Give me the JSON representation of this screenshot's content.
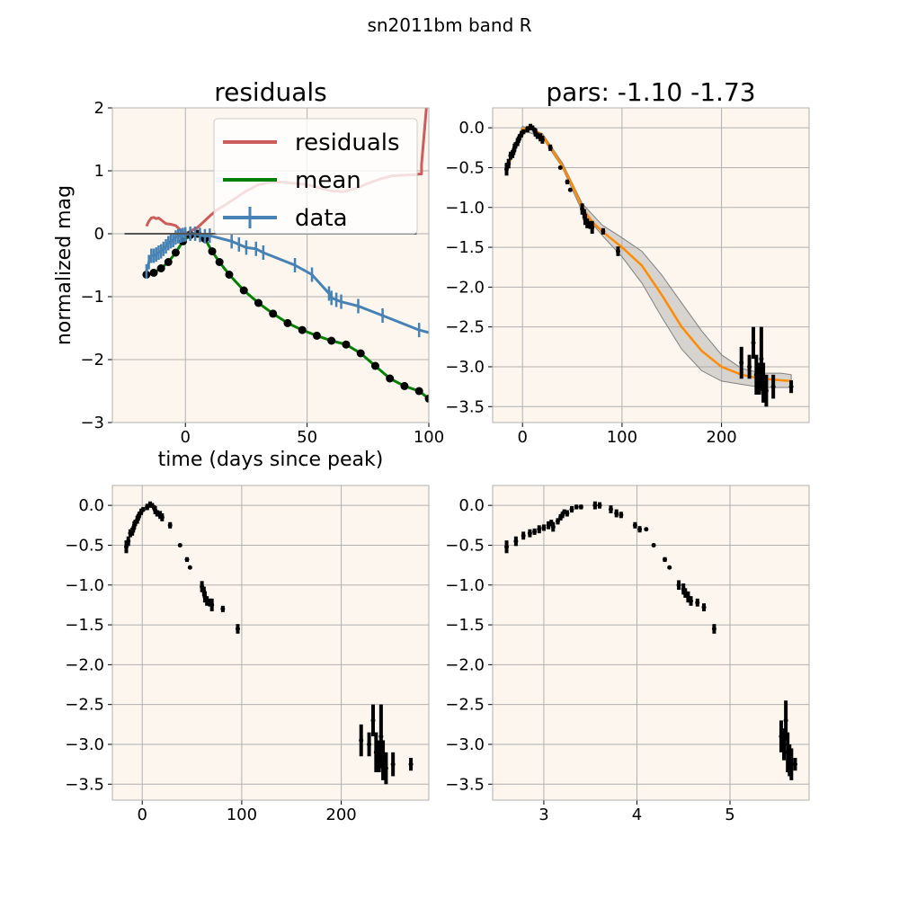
{
  "figure": {
    "suptitle": "sn2011bm band R"
  },
  "colors": {
    "panel_bg": "#fdf6ee",
    "grid": "#b0b0b0",
    "residuals": "#cd5c5c",
    "mean": "#008000",
    "data": "#4682b4",
    "gp_mean": "#ff8c00",
    "gp_band": "#a9a9a9",
    "points": "#000000"
  },
  "chart_data": [
    {
      "type": "line",
      "title": "residuals",
      "xlabel": "time (days since peak)",
      "ylabel": "normalized mag",
      "xlim": [
        -30,
        100
      ],
      "ylim": [
        -3,
        2
      ],
      "xticks": [
        0,
        50,
        100
      ],
      "yticks": [
        2,
        1,
        0,
        -1,
        -2,
        -3
      ],
      "grid": true,
      "legend": {
        "position": "top-right",
        "entries": [
          "residuals",
          "mean",
          "data"
        ]
      },
      "series": [
        {
          "name": "residuals",
          "style": "line",
          "x": [
            -16,
            -15,
            -14,
            -13,
            -12,
            -11,
            -10,
            -8,
            -6,
            -4,
            -2,
            0,
            5,
            10,
            13,
            16,
            20,
            25,
            30,
            35,
            40,
            45,
            50,
            55,
            60,
            65,
            70,
            75,
            80,
            85,
            90,
            95,
            96,
            97,
            97,
            99
          ],
          "y": [
            0.12,
            0.2,
            0.25,
            0.26,
            0.24,
            0.25,
            0.22,
            0.16,
            0.15,
            0.13,
            0.06,
            0.0,
            0.1,
            0.28,
            0.38,
            0.45,
            0.55,
            0.68,
            0.78,
            0.82,
            0.82,
            0.8,
            0.78,
            0.73,
            0.68,
            0.67,
            0.72,
            0.8,
            0.87,
            0.92,
            0.93,
            0.94,
            0.95,
            0.95,
            1.1,
            2.0
          ]
        },
        {
          "name": "mean",
          "style": "line",
          "x": [
            -16,
            -13,
            -10,
            -7,
            -4,
            -1,
            2,
            5,
            8,
            11,
            14,
            18,
            24,
            30,
            36,
            42,
            48,
            54,
            60,
            66,
            72,
            78,
            84,
            90,
            96,
            100
          ],
          "y": [
            -0.65,
            -0.62,
            -0.55,
            -0.45,
            -0.3,
            -0.12,
            -0.02,
            0.0,
            -0.08,
            -0.28,
            -0.45,
            -0.65,
            -0.9,
            -1.1,
            -1.27,
            -1.42,
            -1.53,
            -1.62,
            -1.7,
            -1.76,
            -1.9,
            -2.1,
            -2.3,
            -2.42,
            -2.5,
            -2.62
          ]
        },
        {
          "name": "data",
          "style": "errorbar",
          "x": [
            -16,
            -15,
            -14,
            -13,
            -12,
            -11,
            -10,
            -9,
            -8,
            -7,
            -6,
            -5,
            -4,
            -3,
            -2,
            -1,
            0,
            2,
            4,
            6,
            8,
            10,
            19,
            22,
            25,
            29,
            32,
            45,
            52,
            59,
            60,
            62,
            64,
            71,
            81,
            96,
            101
          ],
          "y": [
            -0.6,
            -0.45,
            -0.35,
            -0.35,
            -0.33,
            -0.3,
            -0.28,
            -0.24,
            -0.2,
            -0.15,
            -0.12,
            -0.1,
            -0.06,
            -0.04,
            -0.03,
            -0.02,
            -0.01,
            0.0,
            0.0,
            -0.02,
            -0.04,
            -0.03,
            -0.12,
            -0.17,
            -0.22,
            -0.24,
            -0.3,
            -0.5,
            -0.65,
            -0.95,
            -1.02,
            -1.05,
            -1.08,
            -1.15,
            -1.3,
            -1.53,
            -1.58
          ]
        },
        {
          "name": "",
          "style": "baseline",
          "x": [
            -25,
            95
          ],
          "y": [
            0,
            0
          ]
        }
      ]
    },
    {
      "type": "line",
      "title": "pars: -1.10 -1.73",
      "xlim": [
        -30,
        288
      ],
      "ylim": [
        -3.7,
        0.25
      ],
      "xticks": [
        0,
        100,
        200
      ],
      "yticks": [
        0.0,
        -0.5,
        -1.0,
        -1.5,
        -2.0,
        -2.5,
        -3.0,
        -3.5
      ],
      "grid": true,
      "series": [
        {
          "name": "",
          "style": "band",
          "x": [
            -16,
            0,
            20,
            40,
            60,
            80,
            100,
            120,
            140,
            160,
            180,
            200,
            220,
            240,
            260,
            270
          ],
          "lower": [
            -0.55,
            -0.03,
            -0.12,
            -0.5,
            -1.05,
            -1.35,
            -1.62,
            -1.95,
            -2.38,
            -2.78,
            -3.05,
            -3.18,
            -3.22,
            -3.26,
            -3.26,
            -3.26
          ],
          "upper": [
            -0.5,
            0.02,
            -0.07,
            -0.44,
            -0.95,
            -1.22,
            -1.38,
            -1.55,
            -1.85,
            -2.2,
            -2.55,
            -2.85,
            -3.02,
            -3.08,
            -3.08,
            -3.1
          ]
        },
        {
          "name": "",
          "style": "line",
          "x": [
            -16,
            0,
            10,
            20,
            30,
            40,
            50,
            60,
            70,
            80,
            90,
            100,
            120,
            140,
            160,
            180,
            200,
            220,
            240,
            260,
            270
          ],
          "y": [
            -0.52,
            -0.02,
            0.0,
            -0.1,
            -0.28,
            -0.48,
            -0.72,
            -1.0,
            -1.18,
            -1.3,
            -1.4,
            -1.5,
            -1.73,
            -2.1,
            -2.5,
            -2.8,
            -3.0,
            -3.1,
            -3.15,
            -3.17,
            -3.18
          ]
        },
        {
          "name": "",
          "style": "errorbar",
          "x": [
            -16,
            -14,
            -12,
            -10,
            -9,
            -8,
            -7,
            -5,
            -4,
            -3,
            -1,
            1,
            5,
            8,
            10,
            12,
            13,
            15,
            18,
            20,
            28,
            38,
            45,
            48,
            60,
            62,
            63,
            65,
            68,
            70,
            81,
            96,
            220,
            228,
            232,
            235,
            238,
            240,
            242,
            245,
            252,
            270
          ],
          "y": [
            -0.52,
            -0.45,
            -0.35,
            -0.33,
            -0.3,
            -0.25,
            -0.22,
            -0.18,
            -0.15,
            -0.12,
            -0.08,
            -0.05,
            -0.02,
            0.01,
            0.0,
            -0.03,
            -0.06,
            -0.1,
            -0.12,
            -0.15,
            -0.25,
            -0.5,
            -0.68,
            -0.78,
            -1.02,
            -1.08,
            -1.15,
            -1.2,
            -1.22,
            -1.25,
            -1.3,
            -1.55,
            -2.95,
            -3.0,
            -2.7,
            -3.1,
            -3.15,
            -2.9,
            -3.2,
            -3.3,
            -3.25,
            -3.25
          ],
          "yerr": [
            0.08,
            0.06,
            0.05,
            0.05,
            0.04,
            0.05,
            0.04,
            0.05,
            0.04,
            0.04,
            0.04,
            0.03,
            0.04,
            0.04,
            0.03,
            0.03,
            0.05,
            0.04,
            0.05,
            0.05,
            0.04,
            0.02,
            0.03,
            0.02,
            0.07,
            0.06,
            0.07,
            0.06,
            0.05,
            0.08,
            0.04,
            0.06,
            0.2,
            0.15,
            0.2,
            0.25,
            0.2,
            0.4,
            0.25,
            0.2,
            0.15,
            0.08
          ]
        }
      ]
    },
    {
      "type": "scatter",
      "xlim": [
        -30,
        288
      ],
      "ylim": [
        -3.7,
        0.25
      ],
      "xticks": [
        0,
        100,
        200
      ],
      "yticks": [
        0.0,
        -0.5,
        -1.0,
        -1.5,
        -2.0,
        -2.5,
        -3.0,
        -3.5
      ],
      "grid": true,
      "series": [
        {
          "name": "",
          "style": "errorbar",
          "x": [
            -16,
            -14,
            -12,
            -10,
            -9,
            -8,
            -7,
            -5,
            -4,
            -3,
            -1,
            1,
            5,
            8,
            10,
            12,
            13,
            15,
            18,
            20,
            28,
            38,
            45,
            48,
            60,
            62,
            63,
            65,
            68,
            70,
            81,
            96,
            220,
            228,
            232,
            235,
            238,
            240,
            242,
            245,
            252,
            270
          ],
          "y": [
            -0.52,
            -0.45,
            -0.35,
            -0.33,
            -0.3,
            -0.25,
            -0.22,
            -0.18,
            -0.15,
            -0.12,
            -0.08,
            -0.05,
            -0.02,
            0.01,
            0.0,
            -0.03,
            -0.06,
            -0.1,
            -0.12,
            -0.15,
            -0.25,
            -0.5,
            -0.68,
            -0.78,
            -1.02,
            -1.08,
            -1.15,
            -1.2,
            -1.22,
            -1.25,
            -1.3,
            -1.55,
            -2.95,
            -3.0,
            -2.7,
            -3.1,
            -3.15,
            -2.9,
            -3.2,
            -3.3,
            -3.25,
            -3.25
          ],
          "yerr": [
            0.08,
            0.06,
            0.05,
            0.05,
            0.04,
            0.05,
            0.04,
            0.05,
            0.04,
            0.04,
            0.04,
            0.03,
            0.04,
            0.04,
            0.03,
            0.03,
            0.05,
            0.04,
            0.05,
            0.05,
            0.04,
            0.02,
            0.03,
            0.02,
            0.07,
            0.06,
            0.07,
            0.06,
            0.05,
            0.08,
            0.04,
            0.06,
            0.2,
            0.15,
            0.2,
            0.25,
            0.2,
            0.4,
            0.25,
            0.2,
            0.15,
            0.08
          ]
        }
      ]
    },
    {
      "type": "scatter",
      "xlim": [
        2.45,
        5.85
      ],
      "ylim": [
        -3.7,
        0.25
      ],
      "xticks": [
        3,
        4,
        5
      ],
      "yticks": [
        0.0,
        -0.5,
        -1.0,
        -1.5,
        -2.0,
        -2.5,
        -3.0,
        -3.5
      ],
      "grid": true,
      "series": [
        {
          "name": "",
          "style": "errorbar",
          "x": [
            2.6,
            2.7,
            2.78,
            2.85,
            2.9,
            2.95,
            3.0,
            3.05,
            3.08,
            3.1,
            3.15,
            3.18,
            3.2,
            3.22,
            3.25,
            3.3,
            3.35,
            3.4,
            3.55,
            3.6,
            3.72,
            3.78,
            3.83,
            3.98,
            4.03,
            4.1,
            4.18,
            4.3,
            4.35,
            4.45,
            4.5,
            4.52,
            4.55,
            4.58,
            4.65,
            4.72,
            4.83,
            5.55,
            5.58,
            5.6,
            5.62,
            5.64,
            5.66,
            5.7
          ],
          "y": [
            -0.52,
            -0.45,
            -0.38,
            -0.35,
            -0.33,
            -0.3,
            -0.28,
            -0.25,
            -0.22,
            -0.27,
            -0.2,
            -0.15,
            -0.12,
            -0.08,
            -0.1,
            -0.05,
            -0.02,
            -0.02,
            0.0,
            0.0,
            -0.05,
            -0.1,
            -0.12,
            -0.25,
            -0.3,
            -0.3,
            -0.5,
            -0.68,
            -0.78,
            -1.0,
            -1.05,
            -1.1,
            -1.15,
            -1.2,
            -1.22,
            -1.28,
            -1.55,
            -2.9,
            -3.0,
            -2.7,
            -3.1,
            -3.2,
            -3.25,
            -3.25
          ],
          "yerr": [
            0.08,
            0.06,
            0.05,
            0.05,
            0.04,
            0.05,
            0.04,
            0.05,
            0.04,
            0.06,
            0.04,
            0.04,
            0.04,
            0.03,
            0.04,
            0.04,
            0.03,
            0.03,
            0.05,
            0.04,
            0.05,
            0.05,
            0.04,
            0.04,
            0.04,
            0.02,
            0.02,
            0.03,
            0.02,
            0.06,
            0.07,
            0.06,
            0.07,
            0.06,
            0.05,
            0.05,
            0.06,
            0.2,
            0.2,
            0.25,
            0.25,
            0.2,
            0.2,
            0.08
          ]
        }
      ]
    }
  ]
}
